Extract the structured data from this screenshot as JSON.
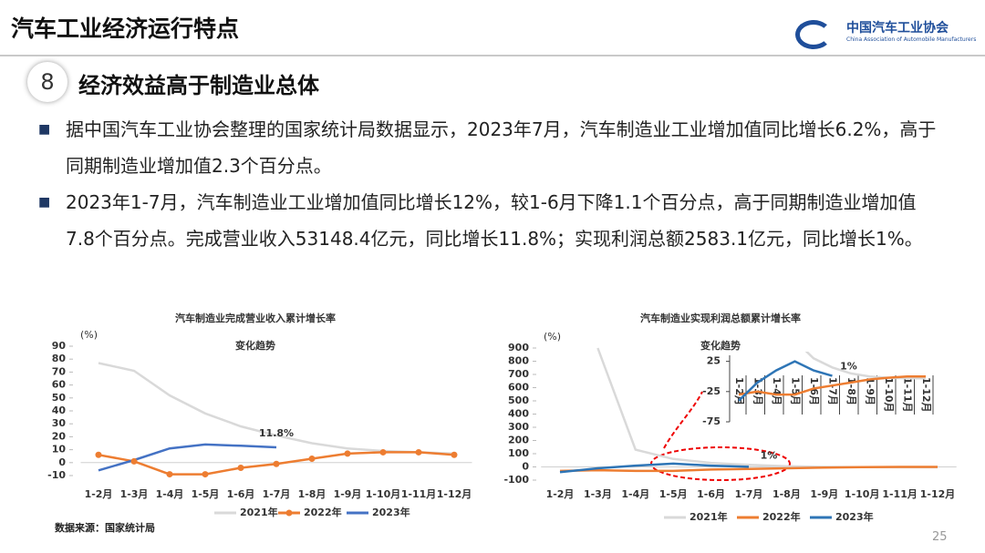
{
  "header": {
    "title": "汽车工业经济运行特点",
    "logo_cn": "中国汽车工业协会",
    "logo_en": "China Association of Automobile Manufacturers"
  },
  "section": {
    "number": "8",
    "title": "经济效益高于制造业总体"
  },
  "bullets": [
    "据中国汽车工业协会整理的国家统计局数据显示，2023年7月，汽车制造业工业增加值同比增长6.2%，高于同期制造业增加值2.3个百分点。",
    "2023年1-7月，汽车制造业工业增加值同比增长12%，较1-6月下降1.1个百分点，高于同期制造业增加值7.8个百分点。完成营业收入53148.4亿元，同比增长11.8%；实现利润总额2583.1亿元，同比增长1%。"
  ],
  "chart_data": [
    {
      "type": "line",
      "title": [
        "汽车制造业完成营业收入累计增长率",
        "变化趋势"
      ],
      "unit": "(%)",
      "categories": [
        "1-2月",
        "1-3月",
        "1-4月",
        "1-5月",
        "1-6月",
        "1-7月",
        "1-8月",
        "1-9月",
        "1-10月",
        "1-11月",
        "1-12月"
      ],
      "series": [
        {
          "name": "2021年",
          "color": "#d9d9d9",
          "values": [
            77,
            71,
            52,
            38,
            28,
            21,
            15,
            11,
            9,
            8,
            7
          ]
        },
        {
          "name": "2022年",
          "color": "#ed7d31",
          "marker": true,
          "values": [
            6,
            1,
            -9,
            -9,
            -4,
            -1,
            3,
            7,
            8,
            8,
            6
          ]
        },
        {
          "name": "2023年",
          "color": "#4472c4",
          "values": [
            -6,
            2,
            11,
            14,
            13,
            11.8,
            null,
            null,
            null,
            null,
            null
          ]
        }
      ],
      "ylim": [
        -10,
        90
      ],
      "yticks": [
        -10,
        0,
        10,
        20,
        30,
        40,
        50,
        60,
        70,
        80,
        90
      ],
      "annotations": [
        "11.8%"
      ]
    },
    {
      "type": "line",
      "title": [
        "汽车制造业实现利润总额累计增长率",
        "变化趋势"
      ],
      "unit": "(%)",
      "categories": [
        "1-2月",
        "1-3月",
        "1-4月",
        "1-5月",
        "1-6月",
        "1-7月",
        "1-8月",
        "1-9月",
        "1-10月",
        "1-11月",
        "1-12月"
      ],
      "series": [
        {
          "name": "2021年",
          "color": "#d9d9d9",
          "values": [
            null,
            900,
            130,
            60,
            30,
            15,
            5,
            0,
            -2,
            -3,
            -3
          ]
        },
        {
          "name": "2022年",
          "color": "#ed7d31",
          "values": [
            -30,
            -25,
            -30,
            -30,
            -20,
            -15,
            -10,
            -5,
            -2,
            0,
            0
          ]
        },
        {
          "name": "2023年",
          "color": "#2e75b6",
          "values": [
            -40,
            -10,
            10,
            25,
            10,
            1,
            null,
            null,
            null,
            null,
            null
          ]
        }
      ],
      "ylim": [
        -100,
        900
      ],
      "yticks": [
        -100,
        0,
        100,
        200,
        300,
        400,
        500,
        600,
        700,
        800,
        900
      ],
      "annotations": [
        "1%"
      ],
      "inset": {
        "ylim": [
          -75,
          35
        ],
        "yticks": [
          25,
          -25,
          -75
        ],
        "annotations": [
          "1%"
        ]
      }
    }
  ],
  "source": "数据来源：国家统计局",
  "page_number": "25"
}
